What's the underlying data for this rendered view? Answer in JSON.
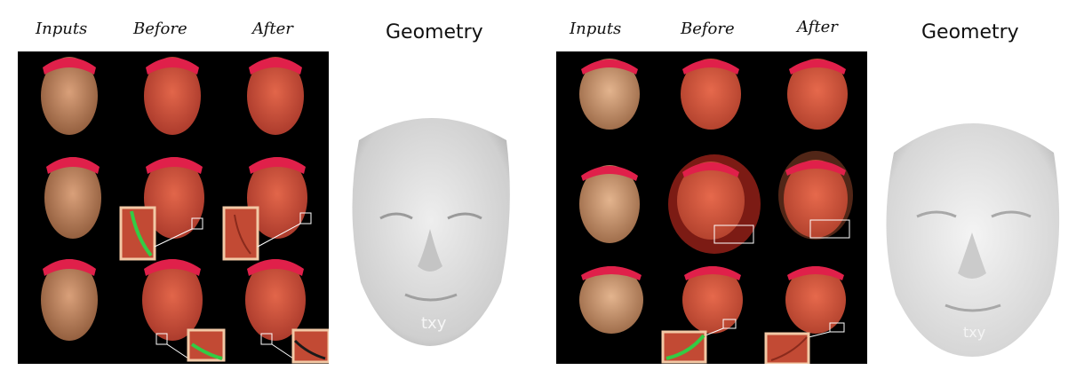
{
  "left": {
    "labels": {
      "inputs": "Inputs",
      "before": "Before",
      "after": "After",
      "geometry": "Geometry"
    },
    "watermark": "txy"
  },
  "right": {
    "labels": {
      "inputs": "Inputs",
      "before": "Before",
      "after": "After",
      "geometry": "Geometry"
    },
    "watermark": "txy"
  },
  "colors": {
    "background": "#ffffff",
    "panel": "#000000",
    "skin_input": "#c98a5e",
    "skin_overlay": "#d9553a",
    "headband": "#e0204a",
    "inset_border": "#f2c9a6",
    "seam_highlight": "#33cc44",
    "mesh": "#dcdcdc"
  },
  "icons": {
    "face": "face-photo",
    "mesh": "3d-face-mesh",
    "inset": "zoom-inset"
  }
}
